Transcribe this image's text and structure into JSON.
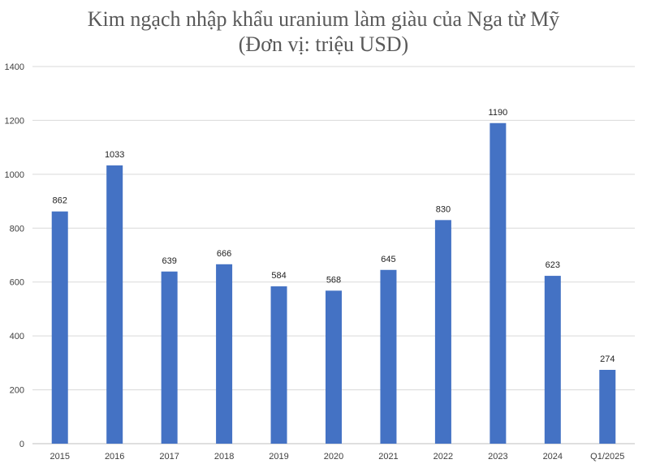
{
  "chart_data": {
    "type": "bar",
    "title": "Kim ngạch nhập khẩu uranium làm giàu của Nga từ Mỹ",
    "subtitle": "(Đơn vị: triệu USD)",
    "categories": [
      "2015",
      "2016",
      "2017",
      "2018",
      "2019",
      "2020",
      "2021",
      "2022",
      "2023",
      "2024",
      "Q1/2025"
    ],
    "values": [
      862,
      1033,
      639,
      666,
      584,
      568,
      645,
      830,
      1190,
      623,
      274
    ],
    "ylim": [
      0,
      1400
    ],
    "yticks": [
      0,
      200,
      400,
      600,
      800,
      1000,
      1200,
      1400
    ],
    "grid": true,
    "bar_color": "#4472C4",
    "grid_color": "#d9d9d9"
  }
}
